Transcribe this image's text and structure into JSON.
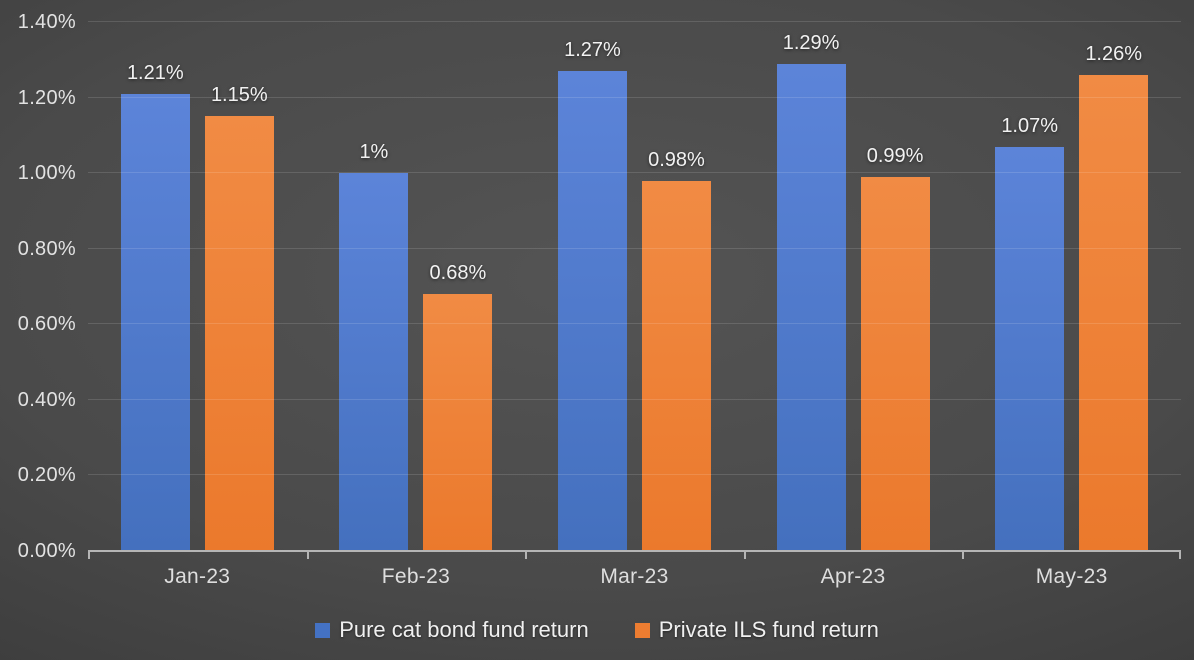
{
  "chart_data": {
    "type": "bar",
    "categories": [
      "Jan-23",
      "Feb-23",
      "Mar-23",
      "Apr-23",
      "May-23"
    ],
    "series": [
      {
        "name": "Pure cat bond fund return",
        "color": "#4472C4",
        "gradient_top": "#5C84D9",
        "gradient_bottom": "#4470BE",
        "values": [
          1.21,
          1.0,
          1.27,
          1.29,
          1.07
        ],
        "labels": [
          "1.21%",
          "1%",
          "1.27%",
          "1.29%",
          "1.07%"
        ]
      },
      {
        "name": "Private ILS fund return",
        "color": "#ED7D31",
        "gradient_top": "#F18B44",
        "gradient_bottom": "#EB792C",
        "values": [
          1.15,
          0.68,
          0.98,
          0.99,
          1.26
        ],
        "labels": [
          "1.15%",
          "0.68%",
          "0.98%",
          "0.99%",
          "1.26%"
        ]
      }
    ],
    "y_axis": {
      "min": 0,
      "max": 1.4,
      "step": 0.2,
      "tick_labels": [
        "0.00%",
        "0.20%",
        "0.40%",
        "0.60%",
        "0.80%",
        "1.00%",
        "1.20%",
        "1.40%"
      ]
    },
    "grid": true,
    "legend_position": "bottom",
    "title": ""
  },
  "style_colors": {
    "background_center": "#4a4a4a",
    "background_edge": "#262626",
    "gridline": "rgba(255,255,255,0.13)",
    "axis_line": "#b5b5b5",
    "axis_text": "#e2e2e2",
    "data_label_text": "#f2f2f2"
  }
}
